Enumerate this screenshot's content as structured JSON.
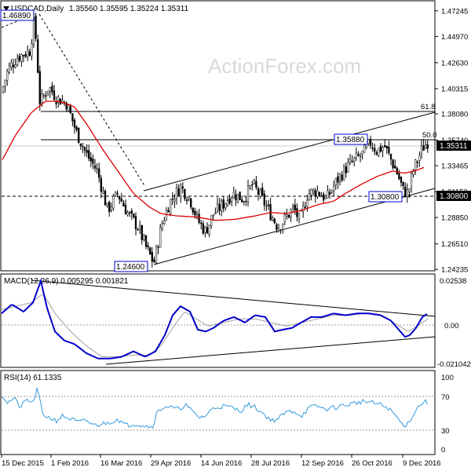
{
  "header": {
    "symbol": "USDCAD,Daily",
    "ohlc": "1.35560 1.35595 1.35224 1.35311"
  },
  "watermark": "ActionForex.com",
  "chart_data": [
    {
      "type": "candlestick",
      "name": "price",
      "ylim": [
        1.2425,
        1.48
      ],
      "price_ticks": [
        "1.47245",
        "1.44970",
        "1.42630",
        "1.40315",
        "1.38080",
        "1.35740",
        "1.33465",
        "1.31150",
        "1.28850",
        "1.26510",
        "1.24235"
      ],
      "price_tick_values": [
        1.47245,
        1.4497,
        1.4263,
        1.40315,
        1.3808,
        1.3574,
        1.33465,
        1.3115,
        1.2885,
        1.2651,
        1.24235
      ],
      "current_price": "1.35311",
      "current_price_value": 1.35311,
      "support_label": "1.30800",
      "support_value": 1.308,
      "fib_levels": [
        {
          "label": "61.8",
          "value": 1.3848
        },
        {
          "label": "50.0",
          "value": 1.359
        }
      ],
      "annotations": [
        {
          "label": "1.46890",
          "value": 1.4689
        },
        {
          "label": "1.24600",
          "value": 1.246
        },
        {
          "label": "1.35880",
          "value": 1.3588
        },
        {
          "label": "1.30800",
          "value": 1.308
        }
      ],
      "moving_average_color": "#e00000",
      "candle_color": "#000000"
    },
    {
      "type": "line",
      "name": "MACD",
      "title": "MACD(12,26,9) 0.005295 0.001821",
      "ylim": [
        -0.023,
        0.027
      ],
      "ticks": [
        "0.02538",
        "0.00",
        "-0.021042"
      ],
      "tick_values": [
        0.02538,
        0,
        -0.021042
      ],
      "series_colors": {
        "macd": "#0000cc",
        "signal": "#a0a0a0"
      }
    },
    {
      "type": "line",
      "name": "RSI",
      "title": "RSI(14) 61.1335",
      "ylim": [
        0,
        100
      ],
      "ticks": [
        "100",
        "70",
        "30",
        "0"
      ],
      "tick_values": [
        100,
        70,
        30,
        0
      ],
      "series_color": "#3399dd"
    }
  ],
  "x_axis": {
    "labels": [
      "15 Dec 2015",
      "1 Feb 2016",
      "16 Mar 2016",
      "29 Apr 2016",
      "14 Jun 2016",
      "28 Jul 2016",
      "12 Sep 2016",
      "26 Oct 2016",
      "9 Dec 2016"
    ]
  },
  "price_keypoints": [
    [
      0,
      1.395
    ],
    [
      10,
      1.42
    ],
    [
      22,
      1.431
    ],
    [
      38,
      1.437
    ],
    [
      44,
      1.466
    ],
    [
      51,
      1.39
    ],
    [
      62,
      1.405
    ],
    [
      72,
      1.395
    ],
    [
      85,
      1.39
    ],
    [
      97,
      1.365
    ],
    [
      110,
      1.345
    ],
    [
      124,
      1.33
    ],
    [
      137,
      1.295
    ],
    [
      150,
      1.31
    ],
    [
      163,
      1.292
    ],
    [
      176,
      1.28
    ],
    [
      186,
      1.262
    ],
    [
      196,
      1.248
    ],
    [
      206,
      1.282
    ],
    [
      216,
      1.302
    ],
    [
      230,
      1.316
    ],
    [
      242,
      1.305
    ],
    [
      252,
      1.286
    ],
    [
      262,
      1.276
    ],
    [
      272,
      1.292
    ],
    [
      284,
      1.3
    ],
    [
      296,
      1.31
    ],
    [
      310,
      1.305
    ],
    [
      322,
      1.318
    ],
    [
      334,
      1.305
    ],
    [
      346,
      1.29
    ],
    [
      354,
      1.28
    ],
    [
      364,
      1.288
    ],
    [
      374,
      1.297
    ],
    [
      382,
      1.285
    ],
    [
      392,
      1.31
    ],
    [
      404,
      1.312
    ],
    [
      416,
      1.305
    ],
    [
      428,
      1.32
    ],
    [
      440,
      1.332
    ],
    [
      452,
      1.34
    ],
    [
      462,
      1.345
    ],
    [
      472,
      1.355
    ],
    [
      480,
      1.348
    ],
    [
      490,
      1.352
    ],
    [
      498,
      1.34
    ],
    [
      506,
      1.328
    ],
    [
      514,
      1.312
    ],
    [
      520,
      1.31
    ],
    [
      526,
      1.33
    ],
    [
      532,
      1.34
    ],
    [
      538,
      1.35
    ],
    [
      545,
      1.356
    ]
  ],
  "ma_keypoints": [
    [
      3,
      1.34
    ],
    [
      20,
      1.362
    ],
    [
      40,
      1.382
    ],
    [
      58,
      1.392
    ],
    [
      75,
      1.392
    ],
    [
      95,
      1.387
    ],
    [
      112,
      1.37
    ],
    [
      130,
      1.35
    ],
    [
      150,
      1.33
    ],
    [
      170,
      1.31
    ],
    [
      190,
      1.298
    ],
    [
      205,
      1.292
    ],
    [
      225,
      1.29
    ],
    [
      250,
      1.289
    ],
    [
      275,
      1.286
    ],
    [
      300,
      1.287
    ],
    [
      325,
      1.29
    ],
    [
      345,
      1.293
    ],
    [
      365,
      1.292
    ],
    [
      385,
      1.295
    ],
    [
      405,
      1.3
    ],
    [
      425,
      1.303
    ],
    [
      440,
      1.31
    ],
    [
      460,
      1.318
    ],
    [
      480,
      1.325
    ],
    [
      500,
      1.33
    ],
    [
      515,
      1.328
    ],
    [
      528,
      1.33
    ],
    [
      540,
      1.333
    ]
  ],
  "macd_keypoints": [
    [
      2,
      0.006
    ],
    [
      15,
      0.011
    ],
    [
      30,
      0.007
    ],
    [
      42,
      0.012
    ],
    [
      52,
      0.024
    ],
    [
      60,
      0.009
    ],
    [
      70,
      -0.004
    ],
    [
      82,
      -0.009
    ],
    [
      95,
      -0.011
    ],
    [
      110,
      -0.016
    ],
    [
      125,
      -0.019
    ],
    [
      140,
      -0.019
    ],
    [
      155,
      -0.018
    ],
    [
      170,
      -0.015
    ],
    [
      185,
      -0.018
    ],
    [
      198,
      -0.015
    ],
    [
      210,
      -0.006
    ],
    [
      220,
      0.005
    ],
    [
      230,
      0.01
    ],
    [
      242,
      0.007
    ],
    [
      252,
      -0.003
    ],
    [
      262,
      -0.004
    ],
    [
      272,
      -0.002
    ],
    [
      285,
      0.002
    ],
    [
      298,
      0.004
    ],
    [
      312,
      0.001
    ],
    [
      325,
      0.005
    ],
    [
      338,
      0.004
    ],
    [
      350,
      -0.004
    ],
    [
      360,
      -0.003
    ],
    [
      372,
      -0.002
    ],
    [
      384,
      0.001
    ],
    [
      396,
      0.004
    ],
    [
      410,
      0.004
    ],
    [
      425,
      0.006
    ],
    [
      440,
      0.005
    ],
    [
      455,
      0.006
    ],
    [
      470,
      0.006
    ],
    [
      485,
      0.005
    ],
    [
      498,
      0.002
    ],
    [
      508,
      -0.003
    ],
    [
      516,
      -0.007
    ],
    [
      522,
      -0.006
    ],
    [
      530,
      -0.002
    ],
    [
      538,
      0.004
    ],
    [
      545,
      0.006
    ]
  ],
  "signal_keypoints": [
    [
      2,
      0.008
    ],
    [
      20,
      0.01
    ],
    [
      40,
      0.012
    ],
    [
      55,
      0.017
    ],
    [
      70,
      0.006
    ],
    [
      90,
      -0.004
    ],
    [
      110,
      -0.012
    ],
    [
      130,
      -0.018
    ],
    [
      150,
      -0.018
    ],
    [
      170,
      -0.017
    ],
    [
      190,
      -0.017
    ],
    [
      205,
      -0.012
    ],
    [
      220,
      -0.002
    ],
    [
      235,
      0.007
    ],
    [
      250,
      0.003
    ],
    [
      265,
      -0.001
    ],
    [
      285,
      0.001
    ],
    [
      305,
      0.003
    ],
    [
      325,
      0.003
    ],
    [
      345,
      0.001
    ],
    [
      365,
      -0.001
    ],
    [
      385,
      0.001
    ],
    [
      405,
      0.003
    ],
    [
      425,
      0.005
    ],
    [
      445,
      0.005
    ],
    [
      465,
      0.006
    ],
    [
      485,
      0.005
    ],
    [
      505,
      0.0
    ],
    [
      520,
      -0.004
    ],
    [
      535,
      0.0
    ],
    [
      545,
      0.003
    ]
  ],
  "rsi_keypoints": [
    [
      2,
      72
    ],
    [
      10,
      62
    ],
    [
      18,
      68
    ],
    [
      26,
      56
    ],
    [
      34,
      66
    ],
    [
      42,
      62
    ],
    [
      48,
      80
    ],
    [
      54,
      48
    ],
    [
      62,
      44
    ],
    [
      72,
      40
    ],
    [
      80,
      46
    ],
    [
      90,
      42
    ],
    [
      100,
      38
    ],
    [
      110,
      40
    ],
    [
      120,
      34
    ],
    [
      130,
      36
    ],
    [
      140,
      38
    ],
    [
      150,
      42
    ],
    [
      160,
      34
    ],
    [
      172,
      36
    ],
    [
      184,
      34
    ],
    [
      194,
      32
    ],
    [
      200,
      50
    ],
    [
      210,
      58
    ],
    [
      218,
      56
    ],
    [
      228,
      54
    ],
    [
      236,
      60
    ],
    [
      246,
      50
    ],
    [
      254,
      44
    ],
    [
      262,
      46
    ],
    [
      272,
      56
    ],
    [
      284,
      58
    ],
    [
      296,
      56
    ],
    [
      306,
      52
    ],
    [
      316,
      60
    ],
    [
      326,
      56
    ],
    [
      336,
      48
    ],
    [
      346,
      40
    ],
    [
      354,
      42
    ],
    [
      364,
      50
    ],
    [
      374,
      52
    ],
    [
      384,
      46
    ],
    [
      394,
      56
    ],
    [
      404,
      58
    ],
    [
      414,
      54
    ],
    [
      424,
      56
    ],
    [
      434,
      58
    ],
    [
      444,
      60
    ],
    [
      454,
      62
    ],
    [
      464,
      64
    ],
    [
      474,
      62
    ],
    [
      484,
      60
    ],
    [
      494,
      56
    ],
    [
      504,
      46
    ],
    [
      512,
      36
    ],
    [
      518,
      34
    ],
    [
      524,
      44
    ],
    [
      532,
      56
    ],
    [
      540,
      64
    ],
    [
      545,
      62
    ]
  ]
}
